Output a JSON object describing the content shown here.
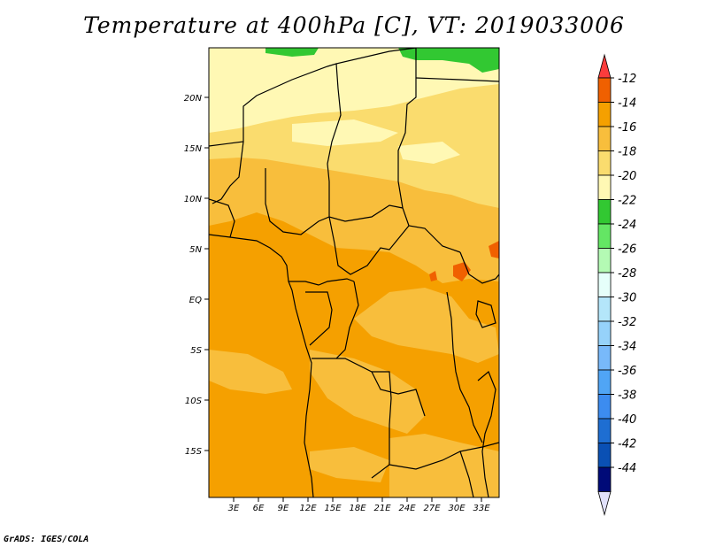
{
  "title": "Temperature at 400hPa [C], VT: 2019033006",
  "credit": "GrADS: IGES/COLA",
  "map": {
    "lon_range": [
      0,
      35
    ],
    "lat_range": [
      -20,
      25
    ],
    "x_ticks": [
      "3E",
      "6E",
      "9E",
      "12E",
      "15E",
      "18E",
      "21E",
      "24E",
      "27E",
      "30E",
      "33E"
    ],
    "y_ticks": [
      "20N",
      "15N",
      "10N",
      "5N",
      "EQ",
      "5S",
      "10S",
      "15S"
    ]
  },
  "colorbar": {
    "labels": [
      "-12",
      "-14",
      "-16",
      "-18",
      "-20",
      "-22",
      "-24",
      "-26",
      "-28",
      "-30",
      "-32",
      "-34",
      "-36",
      "-38",
      "-40",
      "-42",
      "-44"
    ],
    "colors": [
      "#fa3c3c",
      "#f06000",
      "#f5a000",
      "#f8be3c",
      "#fadc6e",
      "#fff8b4",
      "#32c832",
      "#64e664",
      "#b4fab4",
      "#e6fffa",
      "#b4e6fa",
      "#96d2fa",
      "#78b9fa",
      "#50a5f5",
      "#3c8cf0",
      "#1e6ed2",
      "#0a50b4",
      "#000a78",
      "#e1e1fa"
    ]
  }
}
